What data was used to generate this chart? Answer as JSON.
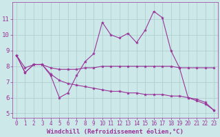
{
  "xlabel": "Windchill (Refroidissement éolien,°C)",
  "background_color": "#cce8e8",
  "grid_color": "#aacccc",
  "line_color": "#993399",
  "x": [
    0,
    1,
    2,
    3,
    4,
    5,
    6,
    7,
    8,
    9,
    10,
    11,
    12,
    13,
    14,
    15,
    16,
    17,
    18,
    19,
    20,
    21,
    22,
    23
  ],
  "line1": [
    8.7,
    7.6,
    8.1,
    8.1,
    7.4,
    6.0,
    6.3,
    7.4,
    8.3,
    8.8,
    10.8,
    10.0,
    9.8,
    10.1,
    9.5,
    10.3,
    11.5,
    11.1,
    9.0,
    7.9,
    6.0,
    5.8,
    5.6,
    5.2
  ],
  "line2": [
    8.7,
    7.9,
    8.1,
    8.1,
    7.9,
    7.8,
    7.8,
    7.8,
    7.9,
    7.9,
    8.0,
    8.0,
    8.0,
    8.0,
    8.0,
    8.0,
    8.0,
    8.0,
    8.0,
    7.9,
    7.9,
    7.9,
    7.9,
    7.9
  ],
  "line3": [
    8.7,
    7.6,
    8.1,
    8.1,
    7.5,
    7.1,
    6.9,
    6.8,
    6.7,
    6.6,
    6.5,
    6.4,
    6.4,
    6.3,
    6.3,
    6.2,
    6.2,
    6.2,
    6.1,
    6.1,
    6.0,
    5.9,
    5.7,
    5.2
  ],
  "ylim": [
    4.7,
    12.1
  ],
  "yticks": [
    5,
    6,
    7,
    8,
    9,
    10,
    11
  ],
  "xticks": [
    0,
    1,
    2,
    3,
    4,
    5,
    6,
    7,
    8,
    9,
    10,
    11,
    12,
    13,
    14,
    15,
    16,
    17,
    18,
    19,
    20,
    21,
    22,
    23
  ],
  "font_color": "#993399",
  "tick_font_size": 5.5,
  "xlabel_font_size": 6.5
}
